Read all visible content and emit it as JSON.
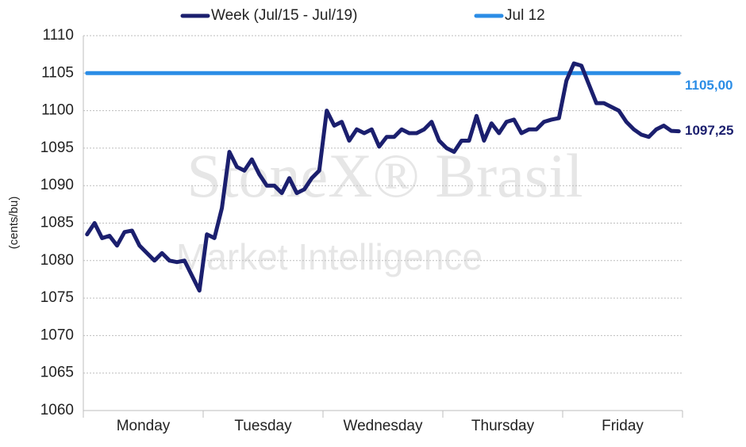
{
  "chart_data": {
    "type": "line",
    "y_label": "(cents/bu)",
    "watermark": [
      "StoneX® Brasil",
      "Market Intelligence"
    ],
    "categories": [
      null,
      null,
      null,
      null,
      null,
      null,
      null,
      null,
      "Monday",
      null,
      null,
      null,
      null,
      null,
      null,
      null,
      null,
      null,
      null,
      null,
      null,
      null,
      null,
      null,
      "Tuesday",
      null,
      null,
      null,
      null,
      null,
      null,
      null,
      null,
      null,
      null,
      null,
      null,
      null,
      null,
      null,
      "Wednesday",
      null,
      null,
      null,
      null,
      null,
      null,
      null,
      null,
      null,
      null,
      null,
      null,
      null,
      null,
      null,
      "Thursday",
      null,
      null,
      null,
      null,
      null,
      null,
      null,
      null,
      null,
      null,
      null,
      null,
      null,
      null,
      null,
      "Friday",
      null,
      null,
      null,
      null,
      null,
      null,
      null
    ],
    "series": [
      {
        "name": "Week (Jul/15 - Jul/19)",
        "color": "#1b1f6e",
        "end_label": "1097,25",
        "values": [
          1083.5,
          1085,
          1083,
          1083.3,
          1082,
          1083.8,
          1084,
          1082,
          1081,
          1080,
          1081,
          1080,
          1079.8,
          1080,
          1078,
          1076,
          1083.5,
          1083,
          1087,
          1094.5,
          1092.5,
          1092,
          1093.5,
          1091.5,
          1090,
          1090,
          1089,
          1091,
          1089,
          1089.5,
          1091,
          1092,
          1100,
          1098,
          1098.5,
          1096,
          1097.5,
          1097,
          1097.5,
          1095.2,
          1096.5,
          1096.5,
          1097.5,
          1097,
          1097,
          1097.5,
          1098.5,
          1096,
          1095,
          1094.5,
          1096,
          1096,
          1099.3,
          1096,
          1098.3,
          1097,
          1098.5,
          1098.8,
          1097,
          1097.5,
          1097.5,
          1098.5,
          1098.8,
          1099,
          1104,
          1106.3,
          1106,
          1103.5,
          1101,
          1101,
          1100.5,
          1100,
          1098.5,
          1097.5,
          1096.8,
          1096.5,
          1097.5,
          1098,
          1097.3,
          1097.25
        ]
      },
      {
        "name": "Jul 12",
        "color": "#2b8de6",
        "end_label": "1105,00",
        "values": [
          1105,
          1105,
          1105,
          1105,
          1105,
          1105,
          1105,
          1105,
          1105,
          1105,
          1105,
          1105,
          1105,
          1105,
          1105,
          1105,
          1105,
          1105,
          1105,
          1105,
          1105,
          1105,
          1105,
          1105,
          1105,
          1105,
          1105,
          1105,
          1105,
          1105,
          1105,
          1105,
          1105,
          1105,
          1105,
          1105,
          1105,
          1105,
          1105,
          1105,
          1105,
          1105,
          1105,
          1105,
          1105,
          1105,
          1105,
          1105,
          1105,
          1105,
          1105,
          1105,
          1105,
          1105,
          1105,
          1105,
          1105,
          1105,
          1105,
          1105,
          1105,
          1105,
          1105,
          1105,
          1105,
          1105,
          1105,
          1105,
          1105,
          1105,
          1105,
          1105,
          1105,
          1105,
          1105,
          1105,
          1105,
          1105,
          1105,
          1105
        ]
      }
    ],
    "ylim": [
      1060,
      1110
    ],
    "yticks": [
      1060,
      1065,
      1070,
      1075,
      1080,
      1085,
      1090,
      1095,
      1100,
      1105,
      1110
    ],
    "grid": true,
    "legend": "top"
  }
}
